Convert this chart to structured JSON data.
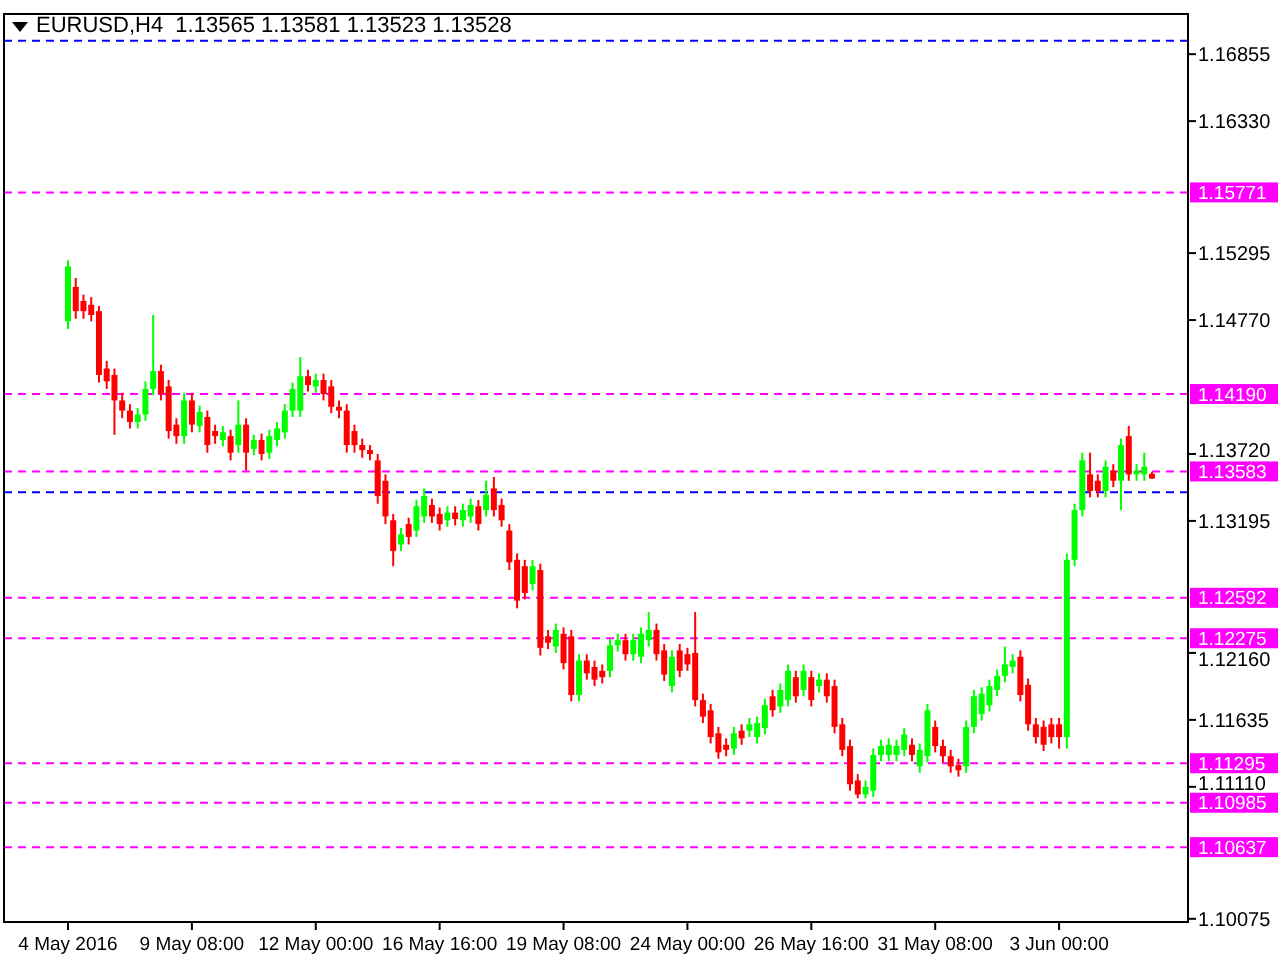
{
  "chart_data": {
    "type": "candlestick",
    "title": "EURUSD,H4  1.13565 1.13581 1.13523 1.13528",
    "categories": [
      "4 May 2016",
      null,
      null,
      null,
      null,
      null,
      null,
      null,
      null,
      null,
      null,
      null,
      null,
      null,
      null,
      null,
      "9 May 08:00",
      null,
      null,
      null,
      null,
      null,
      null,
      null,
      null,
      null,
      null,
      null,
      null,
      null,
      null,
      null,
      "12 May 00:00",
      null,
      null,
      null,
      null,
      null,
      null,
      null,
      null,
      null,
      null,
      null,
      null,
      null,
      null,
      null,
      "16 May 16:00",
      null,
      null,
      null,
      null,
      null,
      null,
      null,
      null,
      null,
      null,
      null,
      null,
      null,
      null,
      null,
      "19 May 08:00",
      null,
      null,
      null,
      null,
      null,
      null,
      null,
      null,
      null,
      null,
      null,
      null,
      null,
      null,
      null,
      "24 May 00:00",
      null,
      null,
      null,
      null,
      null,
      null,
      null,
      null,
      null,
      null,
      null,
      null,
      null,
      null,
      null,
      "26 May 16:00",
      null,
      null,
      null,
      null,
      null,
      null,
      null,
      null,
      null,
      null,
      null,
      null,
      null,
      null,
      null,
      "31 May 08:00",
      null,
      null,
      null,
      null,
      null,
      null,
      null,
      null,
      null,
      null,
      null,
      null,
      null,
      null,
      null,
      "3 Jun 00:00",
      null,
      null,
      null,
      null,
      null,
      null,
      null,
      null,
      null,
      null,
      null,
      null
    ],
    "ohlc": [
      [
        1.1476,
        1.1524,
        1.147,
        1.1519
      ],
      [
        1.1503,
        1.151,
        1.1478,
        1.1484
      ],
      [
        1.1492,
        1.1497,
        1.1478,
        1.1484
      ],
      [
        1.1489,
        1.1495,
        1.1476,
        1.1481
      ],
      [
        1.1484,
        1.1488,
        1.1428,
        1.1434
      ],
      [
        1.1439,
        1.1445,
        1.1423,
        1.1429
      ],
      [
        1.1434,
        1.1439,
        1.1387,
        1.1414
      ],
      [
        1.1414,
        1.142,
        1.14,
        1.1406
      ],
      [
        1.1406,
        1.1411,
        1.1392,
        1.1397
      ],
      [
        1.1397,
        1.1408,
        1.1392,
        1.1403
      ],
      [
        1.1403,
        1.1429,
        1.1398,
        1.1423
      ],
      [
        1.1423,
        1.1481,
        1.1418,
        1.1437
      ],
      [
        1.1437,
        1.1442,
        1.1414,
        1.1419
      ],
      [
        1.1425,
        1.143,
        1.1384,
        1.139
      ],
      [
        1.1395,
        1.14,
        1.138,
        1.1386
      ],
      [
        1.1386,
        1.142,
        1.138,
        1.1414
      ],
      [
        1.1414,
        1.142,
        1.1389,
        1.1395
      ],
      [
        1.1394,
        1.141,
        1.1389,
        1.1405
      ],
      [
        1.1401,
        1.1406,
        1.1373,
        1.1379
      ],
      [
        1.139,
        1.1395,
        1.138,
        1.1386
      ],
      [
        1.1383,
        1.1394,
        1.1378,
        1.1389
      ],
      [
        1.1386,
        1.1391,
        1.1367,
        1.1373
      ],
      [
        1.1379,
        1.1414,
        1.1373,
        1.1395
      ],
      [
        1.1395,
        1.14,
        1.1359,
        1.1373
      ],
      [
        1.1376,
        1.1387,
        1.1371,
        1.1383
      ],
      [
        1.1383,
        1.1388,
        1.1367,
        1.1372
      ],
      [
        1.1373,
        1.1391,
        1.1368,
        1.1386
      ],
      [
        1.1383,
        1.1397,
        1.1378,
        1.1392
      ],
      [
        1.1389,
        1.1411,
        1.1384,
        1.1406
      ],
      [
        1.1406,
        1.1428,
        1.1401,
        1.1423
      ],
      [
        1.1406,
        1.1448,
        1.1401,
        1.1433
      ],
      [
        1.1433,
        1.1438,
        1.1421,
        1.1426
      ],
      [
        1.1425,
        1.1435,
        1.142,
        1.143
      ],
      [
        1.143,
        1.1435,
        1.1414,
        1.1419
      ],
      [
        1.1425,
        1.143,
        1.1404,
        1.1409
      ],
      [
        1.1409,
        1.1414,
        1.14,
        1.1406
      ],
      [
        1.1406,
        1.1411,
        1.1373,
        1.1379
      ],
      [
        1.139,
        1.1395,
        1.1373,
        1.1379
      ],
      [
        1.1379,
        1.1384,
        1.1369,
        1.1375
      ],
      [
        1.1375,
        1.1379,
        1.1367,
        1.1372
      ],
      [
        1.1367,
        1.1372,
        1.1333,
        1.1339
      ],
      [
        1.1351,
        1.1356,
        1.1317,
        1.1323
      ],
      [
        1.132,
        1.1325,
        1.1284,
        1.1296
      ],
      [
        1.1301,
        1.1314,
        1.1296,
        1.1309
      ],
      [
        1.1317,
        1.1322,
        1.1301,
        1.1307
      ],
      [
        1.1312,
        1.1336,
        1.1307,
        1.1331
      ],
      [
        1.1323,
        1.1345,
        1.1318,
        1.1339
      ],
      [
        1.1332,
        1.1337,
        1.1318,
        1.1323
      ],
      [
        1.1325,
        1.133,
        1.1312,
        1.1317
      ],
      [
        1.132,
        1.1331,
        1.1315,
        1.1326
      ],
      [
        1.1326,
        1.1331,
        1.1316,
        1.1321
      ],
      [
        1.132,
        1.1333,
        1.1315,
        1.1328
      ],
      [
        1.1323,
        1.1337,
        1.1318,
        1.1332
      ],
      [
        1.1331,
        1.1336,
        1.1312,
        1.1317
      ],
      [
        1.1328,
        1.1351,
        1.1323,
        1.134
      ],
      [
        1.1345,
        1.1354,
        1.1323,
        1.1328
      ],
      [
        1.1332,
        1.1337,
        1.1315,
        1.132
      ],
      [
        1.1312,
        1.1317,
        1.1281,
        1.1287
      ],
      [
        1.1289,
        1.1294,
        1.1251,
        1.1257
      ],
      [
        1.1284,
        1.1289,
        1.1258,
        1.1263
      ],
      [
        1.127,
        1.1289,
        1.1265,
        1.1284
      ],
      [
        1.1281,
        1.1286,
        1.1214,
        1.122
      ],
      [
        1.1229,
        1.1234,
        1.1219,
        1.1224
      ],
      [
        1.1221,
        1.1239,
        1.1216,
        1.1234
      ],
      [
        1.1231,
        1.1236,
        1.1203,
        1.1208
      ],
      [
        1.1229,
        1.1234,
        1.1178,
        1.1183
      ],
      [
        1.1183,
        1.1215,
        1.1178,
        1.121
      ],
      [
        1.121,
        1.1215,
        1.1195,
        1.12
      ],
      [
        1.1205,
        1.121,
        1.119,
        1.1195
      ],
      [
        1.1202,
        1.1207,
        1.1192,
        1.1197
      ],
      [
        1.1202,
        1.1227,
        1.1197,
        1.1222
      ],
      [
        1.1222,
        1.1231,
        1.1217,
        1.1226
      ],
      [
        1.1226,
        1.1231,
        1.121,
        1.1215
      ],
      [
        1.1215,
        1.1231,
        1.121,
        1.1226
      ],
      [
        1.1213,
        1.1236,
        1.1208,
        1.1231
      ],
      [
        1.1226,
        1.1248,
        1.1221,
        1.1234
      ],
      [
        1.1234,
        1.1239,
        1.121,
        1.1215
      ],
      [
        1.1218,
        1.1223,
        1.1194,
        1.1199
      ],
      [
        1.119,
        1.1218,
        1.1185,
        1.1213
      ],
      [
        1.1218,
        1.1223,
        1.1197,
        1.1202
      ],
      [
        1.1215,
        1.122,
        1.1202,
        1.1207
      ],
      [
        1.1216,
        1.1248,
        1.1174,
        1.1179
      ],
      [
        1.1179,
        1.1184,
        1.1161,
        1.1166
      ],
      [
        1.1171,
        1.1176,
        1.1145,
        1.115
      ],
      [
        1.1153,
        1.1158,
        1.1133,
        1.1138
      ],
      [
        1.1144,
        1.1149,
        1.1135,
        1.114
      ],
      [
        1.1141,
        1.1158,
        1.1136,
        1.1153
      ],
      [
        1.1155,
        1.116,
        1.1144,
        1.1149
      ],
      [
        1.1155,
        1.1165,
        1.115,
        1.116
      ],
      [
        1.115,
        1.1166,
        1.1145,
        1.1161
      ],
      [
        1.1157,
        1.118,
        1.1152,
        1.1175
      ],
      [
        1.1182,
        1.1187,
        1.1166,
        1.1171
      ],
      [
        1.1174,
        1.1192,
        1.1169,
        1.1187
      ],
      [
        1.1179,
        1.1207,
        1.1174,
        1.1202
      ],
      [
        1.1197,
        1.1202,
        1.1177,
        1.1182
      ],
      [
        1.1187,
        1.1207,
        1.1182,
        1.1202
      ],
      [
        1.1197,
        1.1202,
        1.1174,
        1.1179
      ],
      [
        1.119,
        1.12,
        1.1185,
        1.1195
      ],
      [
        1.1195,
        1.12,
        1.1177,
        1.1182
      ],
      [
        1.119,
        1.1195,
        1.1153,
        1.1158
      ],
      [
        1.116,
        1.1165,
        1.1135,
        1.114
      ],
      [
        1.1143,
        1.1148,
        1.1108,
        1.1113
      ],
      [
        1.1116,
        1.1121,
        1.1102,
        1.1105
      ],
      [
        1.1105,
        1.1116,
        1.1102,
        1.1111
      ],
      [
        1.1108,
        1.1141,
        1.1103,
        1.1136
      ],
      [
        1.1136,
        1.1148,
        1.1131,
        1.1143
      ],
      [
        1.1136,
        1.1149,
        1.1131,
        1.1144
      ],
      [
        1.1136,
        1.1148,
        1.1131,
        1.1143
      ],
      [
        1.114,
        1.1157,
        1.1135,
        1.1152
      ],
      [
        1.1144,
        1.1149,
        1.1131,
        1.1136
      ],
      [
        1.1127,
        1.1145,
        1.1122,
        1.114
      ],
      [
        1.1135,
        1.1176,
        1.113,
        1.1171
      ],
      [
        1.1158,
        1.1163,
        1.1138,
        1.1143
      ],
      [
        1.1143,
        1.1148,
        1.113,
        1.1135
      ],
      [
        1.1135,
        1.114,
        1.1122,
        1.1127
      ],
      [
        1.1128,
        1.1133,
        1.1119,
        1.1124
      ],
      [
        1.1127,
        1.1163,
        1.1122,
        1.1158
      ],
      [
        1.1158,
        1.1187,
        1.1153,
        1.1182
      ],
      [
        1.1168,
        1.1189,
        1.1163,
        1.1184
      ],
      [
        1.1175,
        1.1195,
        1.117,
        1.119
      ],
      [
        1.1187,
        1.1203,
        1.1182,
        1.1198
      ],
      [
        1.1198,
        1.1221,
        1.1193,
        1.1207
      ],
      [
        1.1205,
        1.1215,
        1.12,
        1.121
      ],
      [
        1.1213,
        1.1218,
        1.1178,
        1.1183
      ],
      [
        1.1191,
        1.1196,
        1.1155,
        1.116
      ],
      [
        1.116,
        1.1165,
        1.1145,
        1.115
      ],
      [
        1.1158,
        1.1163,
        1.1139,
        1.1144
      ],
      [
        1.116,
        1.1165,
        1.1145,
        1.115
      ],
      [
        1.116,
        1.1165,
        1.1141,
        1.115
      ],
      [
        1.115,
        1.1294,
        1.1141,
        1.1289
      ],
      [
        1.1289,
        1.1333,
        1.1284,
        1.1328
      ],
      [
        1.1328,
        1.1373,
        1.1323,
        1.1367
      ],
      [
        1.1356,
        1.1373,
        1.1338,
        1.1343
      ],
      [
        1.1351,
        1.1356,
        1.1338,
        1.1343
      ],
      [
        1.1343,
        1.1367,
        1.1338,
        1.1362
      ],
      [
        1.1359,
        1.1364,
        1.1346,
        1.1351
      ],
      [
        1.1351,
        1.1384,
        1.1328,
        1.1379
      ],
      [
        1.1386,
        1.1394,
        1.1351,
        1.1356
      ],
      [
        1.1356,
        1.1364,
        1.1351,
        1.1359
      ],
      [
        1.1356,
        1.1373,
        1.1351,
        1.1362
      ],
      [
        1.13565,
        1.13581,
        1.13523,
        1.13528
      ]
    ],
    "colors": [
      "#00ff00",
      "#ff0000",
      "#ff0000",
      "#ff0000",
      "#ff0000",
      "#ff0000",
      "#ff0000",
      "#ff0000",
      "#ff0000",
      "#00ff00",
      "#00ff00",
      "#00ff00",
      "#ff0000",
      "#ff0000",
      "#ff0000",
      "#00ff00",
      "#ff0000",
      "#00ff00",
      "#ff0000",
      "#ff0000",
      "#00ff00",
      "#ff0000",
      "#00ff00",
      "#ff0000",
      "#00ff00",
      "#ff0000",
      "#00ff00",
      "#00ff00",
      "#00ff00",
      "#00ff00",
      "#00ff00",
      "#ff0000",
      "#00ff00",
      "#ff0000",
      "#ff0000",
      "#ff0000",
      "#ff0000",
      "#ff0000",
      "#ff0000",
      "#ff0000",
      "#ff0000",
      "#ff0000",
      "#ff0000",
      "#00ff00",
      "#ff0000",
      "#00ff00",
      "#00ff00",
      "#ff0000",
      "#ff0000",
      "#00ff00",
      "#ff0000",
      "#00ff00",
      "#00ff00",
      "#ff0000",
      "#00ff00",
      "#ff0000",
      "#ff0000",
      "#ff0000",
      "#ff0000",
      "#ff0000",
      "#00ff00",
      "#ff0000",
      "#ff0000",
      "#00ff00",
      "#ff0000",
      "#ff0000",
      "#00ff00",
      "#ff0000",
      "#ff0000",
      "#ff0000",
      "#00ff00",
      "#00ff00",
      "#ff0000",
      "#00ff00",
      "#00ff00",
      "#00ff00",
      "#ff0000",
      "#ff0000",
      "#00ff00",
      "#ff0000",
      "#ff0000",
      "#ff0000",
      "#ff0000",
      "#ff0000",
      "#ff0000",
      "#ff0000",
      "#00ff00",
      "#ff0000",
      "#00ff00",
      "#00ff00",
      "#00ff00",
      "#ff0000",
      "#00ff00",
      "#00ff00",
      "#ff0000",
      "#00ff00",
      "#ff0000",
      "#00ff00",
      "#ff0000",
      "#ff0000",
      "#ff0000",
      "#ff0000",
      "#ff0000",
      "#00ff00",
      "#00ff00",
      "#00ff00",
      "#00ff00",
      "#00ff00",
      "#00ff00",
      "#ff0000",
      "#00ff00",
      "#00ff00",
      "#ff0000",
      "#ff0000",
      "#ff0000",
      "#ff0000",
      "#00ff00",
      "#00ff00",
      "#00ff00",
      "#00ff00",
      "#00ff00",
      "#00ff00",
      "#00ff00",
      "#ff0000",
      "#ff0000",
      "#ff0000",
      "#ff0000",
      "#ff0000",
      "#ff0000",
      "#00ff00",
      "#00ff00",
      "#00ff00",
      "#ff0000",
      "#ff0000",
      "#00ff00",
      "#ff0000",
      "#00ff00",
      "#ff0000",
      "#00ff00",
      "#00ff00",
      "#ff0000"
    ],
    "ylim": [
      1.1005,
      1.1717
    ],
    "yticks": [
      1.16855,
      {
        "value": 1.1633,
        "label": "1.16330"
      },
      1.15295,
      {
        "value": 1.1477,
        "label": "1.14770"
      },
      {
        "value": 1.1372,
        "label": "1.13720"
      },
      1.13195,
      {
        "value": 1.1216,
        "label": "1.12160"
      },
      1.11635,
      {
        "value": 1.1111,
        "label": "1.11110"
      },
      1.10075
    ],
    "ref_lines": [
      {
        "axis": "y",
        "value": 1.1696,
        "color": "#0000ff",
        "line_style": "dashed"
      },
      {
        "axis": "y",
        "value": 1.1342,
        "color": "#0000ff",
        "line_style": "dashed"
      },
      {
        "axis": "y",
        "value": 1.15771,
        "label": "1.15771",
        "color": "#ff00ff",
        "line_style": "dashed"
      },
      {
        "axis": "y",
        "value": 1.1419,
        "label": "1.14190",
        "color": "#ff00ff",
        "line_style": "dashed"
      },
      {
        "axis": "y",
        "value": 1.13583,
        "label": "1.13583",
        "color": "#ff00ff",
        "line_style": "dashed"
      },
      {
        "axis": "y",
        "value": 1.12592,
        "label": "1.12592",
        "color": "#ff00ff",
        "line_style": "dashed"
      },
      {
        "axis": "y",
        "value": 1.12275,
        "label": "1.12275",
        "color": "#ff00ff",
        "line_style": "dashed"
      },
      {
        "axis": "y",
        "value": 1.11295,
        "label": "1.11295",
        "color": "#ff00ff",
        "line_style": "dashed"
      },
      {
        "axis": "y",
        "value": 1.10985,
        "label": "1.10985",
        "color": "#ff00ff",
        "line_style": "dashed"
      },
      {
        "axis": "y",
        "value": 1.10637,
        "label": "1.10637",
        "color": "#ff00ff",
        "line_style": "dashed"
      }
    ]
  }
}
